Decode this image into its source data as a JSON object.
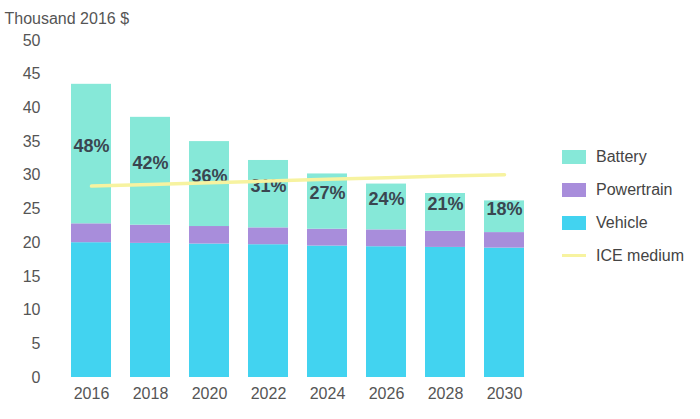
{
  "chart_data": {
    "type": "bar",
    "stacked": true,
    "y_label": "Thousand 2016 $",
    "categories": [
      "2016",
      "2018",
      "2020",
      "2022",
      "2024",
      "2026",
      "2028",
      "2030"
    ],
    "series": [
      {
        "name": "Battery",
        "type": "bar",
        "color": "#86e8d8",
        "values": [
          20.7,
          16.0,
          12.6,
          10.0,
          8.2,
          6.8,
          5.6,
          4.7
        ],
        "share_labels": [
          "48%",
          "42%",
          "36%",
          "31%",
          "27%",
          "24%",
          "21%",
          "18%"
        ]
      },
      {
        "name": "Powertrain",
        "type": "bar",
        "color": "#a88ddb",
        "values": [
          2.8,
          2.7,
          2.6,
          2.5,
          2.5,
          2.5,
          2.4,
          2.3
        ]
      },
      {
        "name": "Vehicle",
        "type": "bar",
        "color": "#42d3f0",
        "values": [
          20.0,
          19.9,
          19.8,
          19.7,
          19.5,
          19.4,
          19.3,
          19.2
        ]
      },
      {
        "name": "ICE medium",
        "type": "line",
        "color": "#f7f3a0",
        "values": [
          28.4,
          28.65,
          28.9,
          29.15,
          29.4,
          29.65,
          29.9,
          30.1
        ]
      }
    ],
    "ylim": [
      0,
      50
    ],
    "yticks": [
      0,
      5,
      10,
      15,
      20,
      25,
      30,
      35,
      40,
      45,
      50
    ],
    "grid": false,
    "legend": "right"
  }
}
